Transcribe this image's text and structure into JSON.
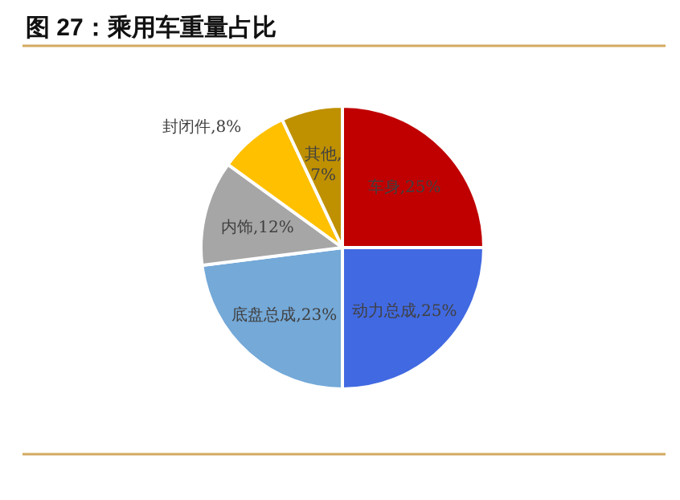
{
  "chart_data": {
    "type": "pie",
    "title": "图 27：乘用车重量占比",
    "categories": [
      "车身",
      "动力总成",
      "底盘总成",
      "内饰",
      "封闭件",
      "其他"
    ],
    "values": [
      25,
      25,
      23,
      12,
      8,
      7
    ],
    "colors": [
      "#c00000",
      "#4169e1",
      "#74a9d8",
      "#a6a6a6",
      "#ffc000",
      "#bf9000"
    ],
    "value_labels": [
      ",25%",
      ",25%",
      ",23%",
      ",12%",
      ",8%",
      ",7%"
    ],
    "legend": false
  }
}
